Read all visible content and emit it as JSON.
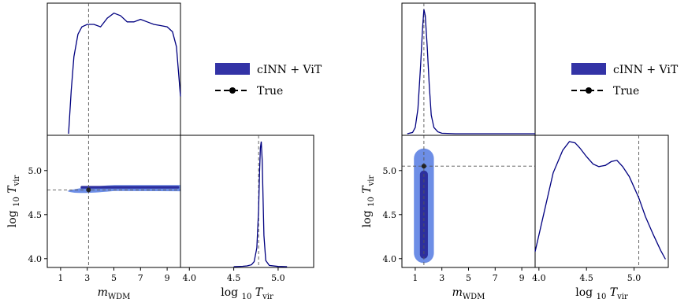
{
  "chart_data": [
    {
      "type": "corner",
      "panel": "left",
      "x_param_label": "m",
      "x_param_sub": "WDM",
      "y_param_label": "log",
      "y_param_base": "10",
      "y_param_var": "T",
      "y_param_sub": "vir",
      "mwdm_ticks": [
        "1",
        "3",
        "5",
        "7",
        "9"
      ],
      "mwdm_range": [
        0.0,
        10.0
      ],
      "tvir_ticks": [
        "4.0",
        "4.5",
        "5.0"
      ],
      "tvir_range": [
        3.9,
        5.4
      ],
      "true_values": {
        "m_WDM": 3.1,
        "log10_Tvir": 4.78
      },
      "marginal_mwdm": {
        "x": [
          1.6,
          1.8,
          2.0,
          2.3,
          2.6,
          3.0,
          3.5,
          4.0,
          4.5,
          5.0,
          5.5,
          6.0,
          6.5,
          7.0,
          7.5,
          8.0,
          8.5,
          9.0,
          9.4,
          9.7,
          10.0
        ],
        "density": [
          0.0,
          0.35,
          0.62,
          0.8,
          0.86,
          0.88,
          0.88,
          0.86,
          0.93,
          0.97,
          0.95,
          0.9,
          0.9,
          0.92,
          0.9,
          0.88,
          0.87,
          0.86,
          0.82,
          0.7,
          0.3
        ]
      },
      "marginal_tvir": {
        "x": [
          4.5,
          4.6,
          4.65,
          4.7,
          4.73,
          4.76,
          4.78,
          4.79,
          4.8,
          4.81,
          4.82,
          4.83,
          4.84,
          4.86,
          4.9,
          5.0,
          5.1
        ],
        "density": [
          0.0,
          0.003,
          0.006,
          0.015,
          0.04,
          0.15,
          0.45,
          0.75,
          0.95,
          1.0,
          0.85,
          0.55,
          0.25,
          0.05,
          0.01,
          0.002,
          0.0
        ]
      },
      "joint_region_68": {
        "m_WDM": [
          2.5,
          9.9
        ],
        "log10_Tvir_center": 4.81,
        "half_width": 0.015
      },
      "joint_region_95": {
        "m_WDM": [
          1.5,
          10.0
        ],
        "log10_Tvir_center": 4.8,
        "half_width": 0.035
      }
    },
    {
      "type": "corner",
      "panel": "right",
      "mwdm_ticks": [
        "1",
        "3",
        "5",
        "7",
        "9"
      ],
      "mwdm_range": [
        0.0,
        10.0
      ],
      "tvir_ticks_joint": [
        "4.0",
        "4.5",
        "5.0"
      ],
      "tvir_ticks_marginal": [
        "4.0",
        "4.5",
        "5.0"
      ],
      "tvir_range": [
        3.9,
        5.4
      ],
      "tvir_marginal_range": [
        3.96,
        5.36
      ],
      "true_values": {
        "m_WDM": 1.65,
        "log10_Tvir": 5.05
      },
      "marginal_mwdm": {
        "x": [
          0.4,
          0.8,
          1.0,
          1.2,
          1.4,
          1.55,
          1.65,
          1.75,
          1.9,
          2.05,
          2.2,
          2.4,
          2.7,
          3.0,
          4.0,
          10.0
        ],
        "density": [
          0.0,
          0.01,
          0.05,
          0.2,
          0.55,
          0.85,
          1.0,
          0.95,
          0.7,
          0.4,
          0.15,
          0.05,
          0.015,
          0.004,
          0.0,
          0.0
        ]
      },
      "marginal_tvir": {
        "x": [
          3.96,
          4.05,
          4.15,
          4.25,
          4.32,
          4.38,
          4.43,
          4.5,
          4.57,
          4.63,
          4.7,
          4.76,
          4.82,
          4.88,
          4.95,
          5.05,
          5.12,
          5.2,
          5.28,
          5.33
        ],
        "density": [
          0.12,
          0.42,
          0.75,
          0.93,
          1.0,
          0.99,
          0.95,
          0.88,
          0.82,
          0.8,
          0.81,
          0.84,
          0.85,
          0.8,
          0.72,
          0.55,
          0.4,
          0.26,
          0.13,
          0.06
        ]
      },
      "joint_region_68": {
        "m_WDM_center": 1.65,
        "m_WDM_half_width": 0.3,
        "log10_Tvir": [
          4.0,
          5.0
        ]
      },
      "joint_region_95": {
        "m_WDM_center": 1.65,
        "m_WDM_half_width": 0.75,
        "log10_Tvir": [
          3.95,
          5.25
        ]
      }
    }
  ],
  "legend": {
    "fill_label": "cINN + ViT",
    "true_label": "True",
    "placement": "top-right"
  },
  "colors": {
    "line": "#000080",
    "contour_68": "#2d2f9e",
    "contour_95": "#6d8ee6",
    "legend_fill": "#3333a6",
    "guide": "#555555"
  }
}
